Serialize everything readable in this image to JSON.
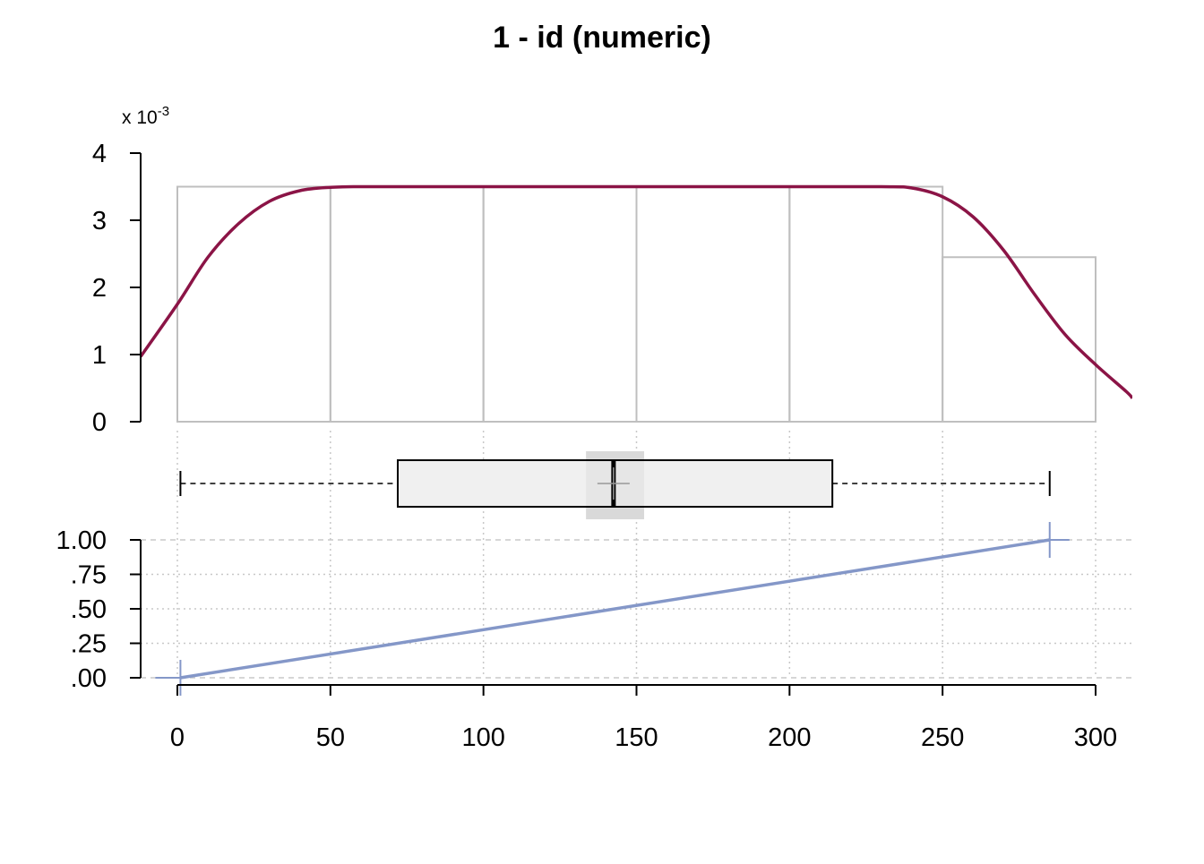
{
  "chart_data": {
    "type": "histogram-boxplot-ecdf",
    "title": "1 - id (numeric)",
    "xlim": [
      -12,
      312
    ],
    "x_ticks": [
      0,
      50,
      100,
      150,
      200,
      250,
      300
    ],
    "x_tick_labels": [
      "0",
      "50",
      "100",
      "150",
      "200",
      "250",
      "300"
    ],
    "histogram": {
      "scale_label_base": "x 10",
      "scale_label_exp": "-3",
      "ylim": [
        0,
        4
      ],
      "y_ticks": [
        0,
        1,
        2,
        3,
        4
      ],
      "y_tick_labels": [
        "0",
        "1",
        "2",
        "3",
        "4"
      ],
      "bin_edges": [
        0,
        50,
        100,
        150,
        200,
        250,
        300
      ],
      "densities": [
        3.5,
        3.5,
        3.5,
        3.5,
        3.5,
        2.45
      ],
      "bar_color": "#bfbfbf",
      "density_curve": {
        "color": "#8b1446",
        "x": [
          -12,
          0,
          10,
          20,
          30,
          40,
          50,
          60,
          80,
          100,
          150,
          200,
          230,
          240,
          250,
          260,
          270,
          280,
          290,
          300,
          310,
          312
        ],
        "y": [
          0.97,
          1.75,
          2.45,
          2.95,
          3.28,
          3.44,
          3.49,
          3.5,
          3.5,
          3.5,
          3.5,
          3.5,
          3.5,
          3.48,
          3.35,
          3.05,
          2.55,
          1.9,
          1.3,
          0.85,
          0.45,
          0.35
        ]
      }
    },
    "boxplot": {
      "min": 1,
      "q1": 72,
      "median": 142.5,
      "mean": 142.5,
      "q3": 214,
      "max": 285,
      "notch_low": 133.5,
      "notch_high": 152.5,
      "box_fill": "#f0f0f0",
      "notch_color": "#d9d9d9"
    },
    "ecdf": {
      "ylim": [
        0,
        1
      ],
      "y_ticks": [
        0,
        0.25,
        0.5,
        0.75,
        1
      ],
      "y_tick_labels": [
        ".00",
        ".25",
        ".50",
        ".75",
        "1.00"
      ],
      "x": [
        1,
        285
      ],
      "y": [
        0,
        1
      ],
      "color": "#8497c8"
    }
  }
}
